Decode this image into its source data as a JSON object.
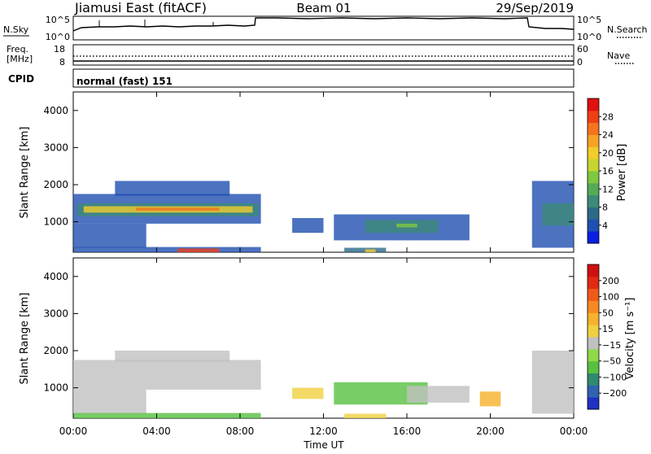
{
  "header": {
    "station": "Jiamusi East (fitACF)",
    "beam": "Beam 01",
    "date": "29/Sep/2019"
  },
  "noise_panel": {
    "left_label": "N.Sky",
    "right_label": "N.Search",
    "left_ticks": [
      "10^5",
      "10^0"
    ],
    "right_ticks": [
      "10^5",
      "10^0"
    ]
  },
  "freq_panel": {
    "left_label_1": "Freq.",
    "left_label_2": "[MHz]",
    "right_label": "Nave",
    "left_ticks": [
      "18",
      "8"
    ],
    "right_ticks": [
      "60",
      "0"
    ]
  },
  "cpid": {
    "label": "CPID",
    "value": "normal (fast) 151"
  },
  "chart_data": [
    {
      "type": "heatmap",
      "quantity": "power",
      "ylabel": "Slant Range [km]",
      "ylim": [
        180,
        4500
      ],
      "yticks": [
        "4000",
        "3000",
        "2000",
        "1000"
      ],
      "ytick_values": [
        4000,
        3000,
        2000,
        1000
      ],
      "colorbar_label": "Power [dB]",
      "colorbar_ticks": [
        "28",
        "24",
        "20",
        "16",
        "12",
        "8",
        "4"
      ],
      "colorbar_tick_values": [
        28,
        24,
        20,
        16,
        12,
        8,
        4
      ],
      "colorbar_range": [
        0,
        32
      ],
      "colorbar_colors": [
        "#0a1fe0",
        "#1f4fb0",
        "#2c6a88",
        "#3c8a78",
        "#55aa55",
        "#7ec73f",
        "#c7d430",
        "#f2cc2a",
        "#f7a226",
        "#f4741f",
        "#ee3f15",
        "#e01010"
      ],
      "regions": [
        {
          "t0": 0.0,
          "t1": 9.0,
          "r0": 950,
          "r1": 1750,
          "color": "#1f4fb0"
        },
        {
          "t0": 0.2,
          "t1": 8.9,
          "r0": 1150,
          "r1": 1500,
          "color": "#3c8a78"
        },
        {
          "t0": 0.5,
          "t1": 8.6,
          "r0": 1250,
          "r1": 1420,
          "color": "#f2cc2a"
        },
        {
          "t0": 3.0,
          "t1": 7.0,
          "r0": 1300,
          "r1": 1380,
          "color": "#f4741f"
        },
        {
          "t0": 0.0,
          "t1": 3.5,
          "r0": 300,
          "r1": 950,
          "color": "#1f4fb0"
        },
        {
          "t0": 2.0,
          "t1": 7.5,
          "r0": 1700,
          "r1": 2100,
          "color": "#1f4fb0"
        },
        {
          "t0": 10.5,
          "t1": 12.0,
          "r0": 700,
          "r1": 1100,
          "color": "#1f4fb0"
        },
        {
          "t0": 12.5,
          "t1": 19.0,
          "r0": 500,
          "r1": 1200,
          "color": "#1f4fb0"
        },
        {
          "t0": 14.0,
          "t1": 17.5,
          "r0": 700,
          "r1": 1050,
          "color": "#3c8a78"
        },
        {
          "t0": 15.5,
          "t1": 16.5,
          "r0": 850,
          "r1": 950,
          "color": "#7ec73f"
        },
        {
          "t0": 22.0,
          "t1": 24.0,
          "r0": 300,
          "r1": 2100,
          "color": "#1f4fb0"
        },
        {
          "t0": 22.5,
          "t1": 24.0,
          "r0": 900,
          "r1": 1500,
          "color": "#3c8a78"
        },
        {
          "t0": 0.0,
          "t1": 9.0,
          "r0": 180,
          "r1": 320,
          "color": "#1f4fb0"
        },
        {
          "t0": 5.0,
          "t1": 7.0,
          "r0": 180,
          "r1": 280,
          "color": "#ee3f15"
        },
        {
          "t0": 13.0,
          "t1": 15.0,
          "r0": 180,
          "r1": 300,
          "color": "#2c6a88"
        },
        {
          "t0": 14.0,
          "t1": 14.5,
          "r0": 180,
          "r1": 260,
          "color": "#f2cc2a"
        }
      ]
    },
    {
      "type": "heatmap",
      "quantity": "velocity",
      "ylabel": "Slant Range [km]",
      "ylim": [
        180,
        4500
      ],
      "yticks": [
        "4000",
        "3000",
        "2000",
        "1000"
      ],
      "ytick_values": [
        4000,
        3000,
        2000,
        1000
      ],
      "xlabel": "Time UT",
      "xticks": [
        "00:00",
        "04:00",
        "08:00",
        "12:00",
        "16:00",
        "20:00",
        "00:00"
      ],
      "xtick_values": [
        0,
        4,
        8,
        12,
        16,
        20,
        24
      ],
      "xlim": [
        0,
        24
      ],
      "colorbar_label": "Velocity [m s⁻¹]",
      "colorbar_ticks": [
        "200",
        "100",
        "50",
        "15",
        "−15",
        "−50",
        "−100",
        "−200"
      ],
      "colorbar_colors": [
        "#2030c0",
        "#2f62b0",
        "#2f8a70",
        "#58c040",
        "#8fd848",
        "#c0c0c0",
        "#f0d040",
        "#f5b22a",
        "#f58a22",
        "#ef5a1a",
        "#e02a14",
        "#d01010"
      ],
      "regions": [
        {
          "t0": 0.0,
          "t1": 9.0,
          "r0": 950,
          "r1": 1750,
          "color": "#c0c0c0"
        },
        {
          "t0": 0.0,
          "t1": 3.5,
          "r0": 300,
          "r1": 950,
          "color": "#c0c0c0"
        },
        {
          "t0": 2.0,
          "t1": 7.5,
          "r0": 1700,
          "r1": 2000,
          "color": "#c0c0c0"
        },
        {
          "t0": 10.5,
          "t1": 12.0,
          "r0": 700,
          "r1": 1000,
          "color": "#f0d040"
        },
        {
          "t0": 12.5,
          "t1": 17.0,
          "r0": 550,
          "r1": 1150,
          "color": "#58c040"
        },
        {
          "t0": 16.0,
          "t1": 19.0,
          "r0": 600,
          "r1": 1050,
          "color": "#c0c0c0"
        },
        {
          "t0": 19.5,
          "t1": 20.5,
          "r0": 500,
          "r1": 900,
          "color": "#f5b22a"
        },
        {
          "t0": 22.0,
          "t1": 24.0,
          "r0": 300,
          "r1": 2000,
          "color": "#c0c0c0"
        },
        {
          "t0": 0.0,
          "t1": 9.0,
          "r0": 180,
          "r1": 320,
          "color": "#58c040"
        },
        {
          "t0": 13.0,
          "t1": 15.0,
          "r0": 180,
          "r1": 300,
          "color": "#f0d040"
        }
      ]
    }
  ]
}
